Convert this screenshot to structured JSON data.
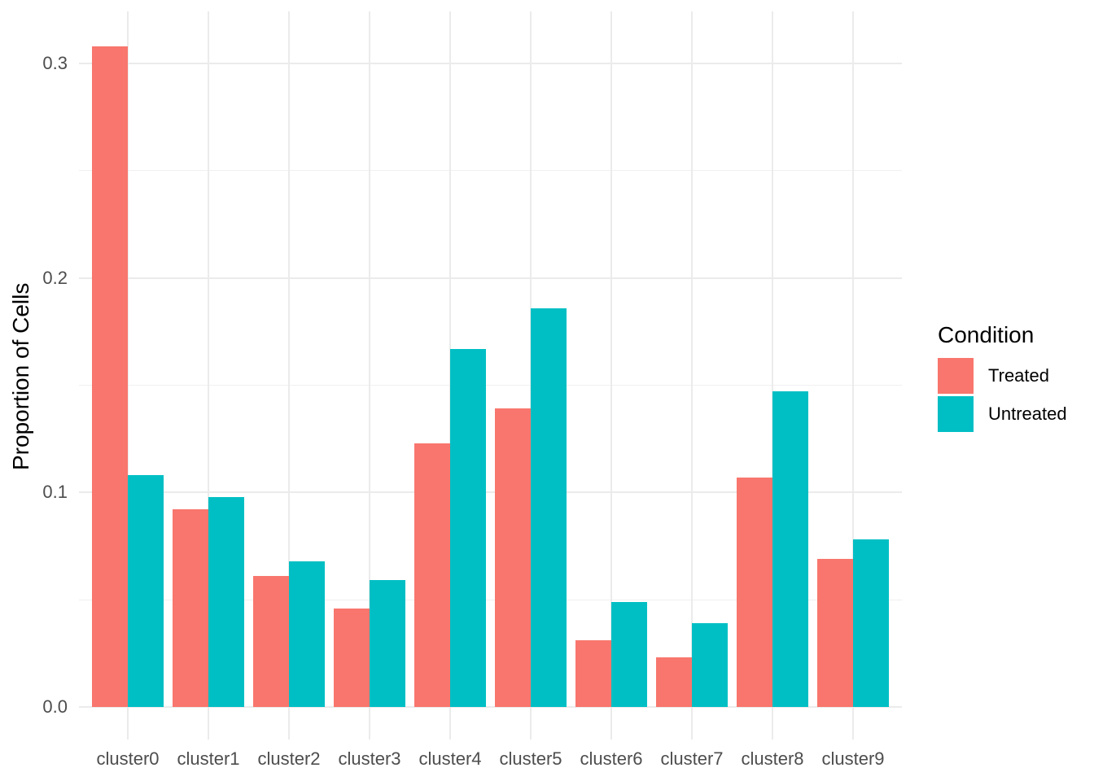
{
  "chart_data": {
    "type": "bar",
    "title": "",
    "categories": [
      "cluster0",
      "cluster1",
      "cluster2",
      "cluster3",
      "cluster4",
      "cluster5",
      "cluster6",
      "cluster7",
      "cluster8",
      "cluster9"
    ],
    "series": [
      {
        "name": "Treated",
        "color": "#F8766D",
        "values": [
          0.308,
          0.092,
          0.061,
          0.046,
          0.123,
          0.139,
          0.031,
          0.023,
          0.107,
          0.069
        ]
      },
      {
        "name": "Untreated",
        "color": "#00BFC4",
        "values": [
          0.108,
          0.098,
          0.068,
          0.059,
          0.167,
          0.186,
          0.049,
          0.039,
          0.147,
          0.078
        ]
      }
    ],
    "xlabel": "",
    "ylabel": "Proportion of Cells",
    "ylim": [
      0,
      0.325
    ],
    "yticks": [
      {
        "value": 0.0,
        "label": "0.0"
      },
      {
        "value": 0.1,
        "label": "0.1"
      },
      {
        "value": 0.2,
        "label": "0.2"
      },
      {
        "value": 0.3,
        "label": "0.3"
      }
    ],
    "yminor": [
      0.05,
      0.15,
      0.25
    ],
    "grid": "major-and-minor, no axis lines, no ticks",
    "legend": {
      "title": "Condition",
      "position": "right"
    },
    "colors": {
      "background": "#FFFFFF",
      "gridline_major": "#EBEBEB",
      "gridline_minor": "#F0F0F0",
      "axis_text": "#4D4D4D",
      "title_text": "#000000"
    }
  }
}
